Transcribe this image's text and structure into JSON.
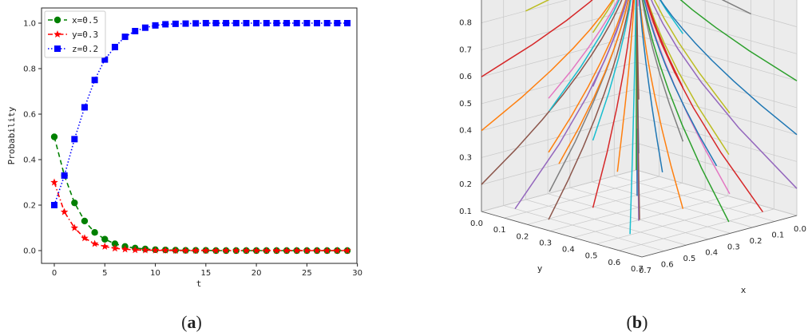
{
  "chart_data": [
    {
      "type": "line",
      "panel_label": "(a)",
      "panel_label_bold": "a",
      "xlabel": "t",
      "ylabel": "Probability",
      "xlim": [
        0,
        29
      ],
      "ylim": [
        0.0,
        1.0
      ],
      "xticks": [
        "0",
        "5",
        "10",
        "15",
        "20",
        "25",
        "30"
      ],
      "yticks": [
        "0.0",
        "0.2",
        "0.4",
        "0.6",
        "0.8",
        "1.0"
      ],
      "legend_position": "top-left",
      "grid": false,
      "series": [
        {
          "name": "x=0.5",
          "color": "#008000",
          "linestyle": "dashed",
          "marker": "circle",
          "x": [
            0,
            1,
            2,
            3,
            4,
            5,
            6,
            7,
            8,
            9,
            10,
            11,
            12,
            13,
            14,
            15,
            16,
            17,
            18,
            19,
            20,
            21,
            22,
            23,
            24,
            25,
            26,
            27,
            28,
            29
          ],
          "values": [
            0.5,
            0.33,
            0.21,
            0.13,
            0.08,
            0.05,
            0.03,
            0.018,
            0.011,
            0.007,
            0.004,
            0.003,
            0.002,
            0.001,
            0.001,
            0.001,
            0,
            0,
            0,
            0,
            0,
            0,
            0,
            0,
            0,
            0,
            0,
            0,
            0,
            0
          ]
        },
        {
          "name": "y=0.3",
          "color": "#ff0000",
          "linestyle": "dash-dot",
          "marker": "star",
          "x": [
            0,
            1,
            2,
            3,
            4,
            5,
            6,
            7,
            8,
            9,
            10,
            11,
            12,
            13,
            14,
            15,
            16,
            17,
            18,
            19,
            20,
            21,
            22,
            23,
            24,
            25,
            26,
            27,
            28,
            29
          ],
          "values": [
            0.3,
            0.17,
            0.1,
            0.055,
            0.03,
            0.018,
            0.01,
            0.006,
            0.003,
            0.002,
            0.001,
            0.001,
            0,
            0,
            0,
            0,
            0,
            0,
            0,
            0,
            0,
            0,
            0,
            0,
            0,
            0,
            0,
            0,
            0,
            0
          ]
        },
        {
          "name": "z=0.2",
          "color": "#0000ff",
          "linestyle": "dotted",
          "marker": "square",
          "x": [
            0,
            1,
            2,
            3,
            4,
            5,
            6,
            7,
            8,
            9,
            10,
            11,
            12,
            13,
            14,
            15,
            16,
            17,
            18,
            19,
            20,
            21,
            22,
            23,
            24,
            25,
            26,
            27,
            28,
            29
          ],
          "values": [
            0.2,
            0.33,
            0.49,
            0.63,
            0.75,
            0.84,
            0.895,
            0.94,
            0.965,
            0.98,
            0.99,
            0.995,
            0.997,
            0.998,
            0.999,
            1,
            1,
            1,
            1,
            1,
            1,
            1,
            1,
            1,
            1,
            1,
            1,
            1,
            1,
            1
          ]
        }
      ]
    },
    {
      "type": "line",
      "subtype": "3d-trajectories",
      "panel_label": "(b)",
      "panel_label_bold": "b",
      "xlabel": "x",
      "ylabel": "y",
      "zticks": [
        "0.1",
        "0.2",
        "0.3",
        "0.4",
        "0.5",
        "0.6",
        "0.7",
        "0.8",
        "0.9"
      ],
      "yticks": [
        "0.0",
        "0.1",
        "0.2",
        "0.3",
        "0.4",
        "0.5",
        "0.6",
        "0.7"
      ],
      "xticks": [
        "0.0",
        "0.1",
        "0.2",
        "0.3",
        "0.4",
        "0.5",
        "0.6",
        "0.7"
      ],
      "xlim": [
        0.0,
        0.7
      ],
      "ylim": [
        0.0,
        0.7
      ],
      "zlim": [
        0.1,
        0.95
      ],
      "convergence_point": [
        0,
        0,
        0.95
      ],
      "palette": [
        "#1f77b4",
        "#ff7f0e",
        "#2ca02c",
        "#d62728",
        "#9467bd",
        "#8c564b",
        "#e377c2",
        "#7f7f7f",
        "#bcbd22",
        "#17becf"
      ],
      "initial_points": [
        [
          0.1,
          0.1,
          0.05
        ],
        [
          0.1,
          0.3,
          0.05
        ],
        [
          0.1,
          0.5,
          0.05
        ],
        [
          0.3,
          0.1,
          0.05
        ],
        [
          0.3,
          0.3,
          0.05
        ],
        [
          0.5,
          0.1,
          0.05
        ],
        [
          0.1,
          0.1,
          0.3
        ],
        [
          0.1,
          0.3,
          0.3
        ],
        [
          0.1,
          0.5,
          0.3
        ],
        [
          0.3,
          0.1,
          0.3
        ],
        [
          0.3,
          0.3,
          0.3
        ],
        [
          0.5,
          0.1,
          0.3
        ],
        [
          0.1,
          0.1,
          0.5
        ],
        [
          0.1,
          0.3,
          0.5
        ],
        [
          0.3,
          0.1,
          0.5
        ],
        [
          0.3,
          0.3,
          0.5
        ],
        [
          0.5,
          0.1,
          0.5
        ],
        [
          0.1,
          0.1,
          0.7
        ],
        [
          0.3,
          0.1,
          0.7
        ],
        [
          0.1,
          0.3,
          0.7
        ],
        [
          0.0,
          0.7,
          0.4
        ],
        [
          0.7,
          0.0,
          0.4
        ],
        [
          0.0,
          0.7,
          0.6
        ],
        [
          0.7,
          0.0,
          0.6
        ],
        [
          0.0,
          0.7,
          0.2
        ],
        [
          0.7,
          0.0,
          0.2
        ],
        [
          0.2,
          0.6,
          0.2
        ],
        [
          0.6,
          0.2,
          0.2
        ],
        [
          0.2,
          0.6,
          0.5
        ],
        [
          0.6,
          0.2,
          0.5
        ],
        [
          0.4,
          0.5,
          0.3
        ],
        [
          0.5,
          0.4,
          0.3
        ],
        [
          0.0,
          0.0,
          0.1
        ],
        [
          0.05,
          0.6,
          0.1
        ],
        [
          0.6,
          0.05,
          0.1
        ],
        [
          0.4,
          0.4,
          0.1
        ],
        [
          0.2,
          0.2,
          0.8
        ],
        [
          0.0,
          0.5,
          0.8
        ],
        [
          0.5,
          0.0,
          0.8
        ],
        [
          0.65,
          0.6,
          0.15
        ],
        [
          0.0,
          0.35,
          0.2
        ],
        [
          0.35,
          0.0,
          0.2
        ]
      ]
    }
  ]
}
